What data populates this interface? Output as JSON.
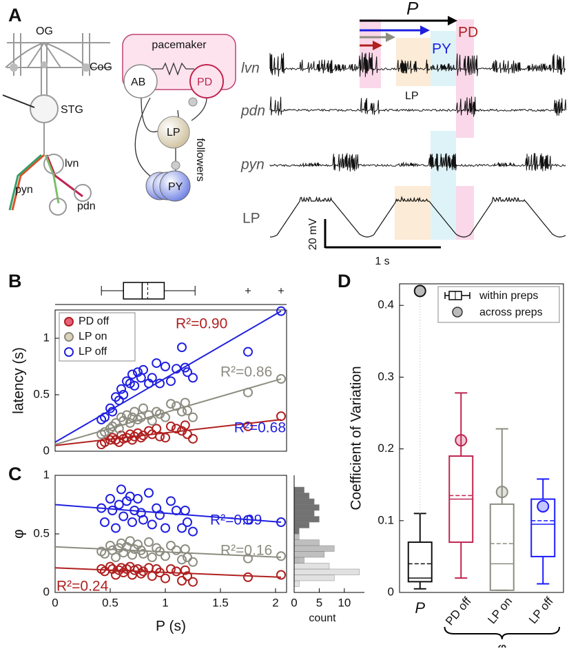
{
  "panel_labels": [
    "A",
    "B",
    "C",
    "D"
  ],
  "diagram": {
    "og": "OG",
    "cog": "CoG",
    "stg": "STG",
    "lvn": "lvn",
    "pyn": "pyn",
    "pdn": "pdn",
    "pacemaker": "pacemaker",
    "ab": "AB",
    "pd": "PD",
    "lp": "LP",
    "py": "PY",
    "followers": "followers"
  },
  "recordings": {
    "traces": [
      "lvn",
      "pdn",
      "pyn",
      "LP"
    ],
    "period_label": "P",
    "pd_label": "PD",
    "py_label": "PY",
    "lp_label": "LP",
    "scale_v": "20 mV",
    "scale_t": "1 s"
  },
  "chart_data": [
    {
      "type": "scatter",
      "ylabel": "latency (s)",
      "xlim": [
        0,
        2.1
      ],
      "ylim": [
        0,
        1.25
      ],
      "yticks": [
        0,
        0.5,
        1
      ],
      "legend": "upper left",
      "x": [
        0.42,
        0.45,
        0.5,
        0.52,
        0.55,
        0.58,
        0.6,
        0.62,
        0.65,
        0.68,
        0.7,
        0.72,
        0.75,
        0.78,
        0.8,
        0.85,
        0.88,
        0.92,
        0.95,
        1.0,
        1.05,
        1.1,
        1.15,
        1.18,
        1.2,
        1.25,
        1.75,
        2.05
      ],
      "fit_x": [
        0,
        2.05
      ],
      "series": [
        {
          "name": "PD off",
          "color": "#b02020",
          "fill": "#e8607a",
          "values": [
            0.06,
            0.08,
            0.1,
            0.12,
            0.1,
            0.08,
            0.14,
            0.11,
            0.12,
            0.15,
            0.1,
            0.13,
            0.16,
            0.12,
            0.14,
            0.18,
            0.15,
            0.2,
            0.13,
            0.12,
            0.22,
            0.2,
            0.18,
            0.23,
            0.15,
            0.11,
            0.22,
            0.31
          ],
          "fit": [
            0.05,
            0.28
          ],
          "r2_label": "R²=0.90"
        },
        {
          "name": "LP on",
          "color": "#8c8c80",
          "fill": "#ddd3b8",
          "values": [
            0.15,
            0.17,
            0.2,
            0.22,
            0.25,
            0.2,
            0.3,
            0.27,
            0.32,
            0.25,
            0.3,
            0.35,
            0.28,
            0.3,
            0.38,
            0.32,
            0.27,
            0.35,
            0.33,
            0.3,
            0.42,
            0.4,
            0.35,
            0.43,
            0.36,
            0.3,
            0.52,
            0.64
          ],
          "fit": [
            0.06,
            0.64
          ],
          "r2_label": "R²=0.86"
        },
        {
          "name": "LP off",
          "color": "#1f1fe0",
          "fill": "#ffffff",
          "values": [
            0.28,
            0.3,
            0.38,
            0.35,
            0.48,
            0.45,
            0.55,
            0.5,
            0.62,
            0.6,
            0.68,
            0.58,
            0.7,
            0.65,
            0.72,
            0.6,
            0.65,
            0.78,
            0.6,
            0.75,
            0.62,
            0.73,
            0.92,
            0.74,
            0.7,
            0.65,
            0.88,
            1.24
          ],
          "fit": [
            0.08,
            1.24
          ],
          "r2_label": "R²=0.68"
        }
      ],
      "boxplot": {
        "low": 0.42,
        "q1": 0.62,
        "median": 0.79,
        "mean": 0.84,
        "q3": 0.99,
        "high": 1.27,
        "outliers": [
          1.75,
          2.05
        ]
      }
    },
    {
      "type": "scatter",
      "ylabel": "φ",
      "xlabel": "P (s)",
      "xlim": [
        0,
        2.1
      ],
      "ylim": [
        0,
        1
      ],
      "yticks": [
        0,
        0.5,
        1
      ],
      "xticks": [
        0,
        0.5,
        1,
        1.5,
        2
      ],
      "x": [
        0.42,
        0.45,
        0.5,
        0.52,
        0.55,
        0.58,
        0.6,
        0.62,
        0.65,
        0.68,
        0.7,
        0.72,
        0.75,
        0.78,
        0.8,
        0.85,
        0.88,
        0.92,
        0.95,
        1.0,
        1.05,
        1.1,
        1.15,
        1.18,
        1.2,
        1.25,
        1.75,
        2.05
      ],
      "fit_x": [
        0,
        2.05
      ],
      "series": [
        {
          "name": "PD off",
          "color": "#b02020",
          "values": [
            0.2,
            0.18,
            0.22,
            0.2,
            0.15,
            0.19,
            0.21,
            0.17,
            0.2,
            0.22,
            0.15,
            0.19,
            0.2,
            0.16,
            0.18,
            0.21,
            0.14,
            0.2,
            0.17,
            0.12,
            0.2,
            0.18,
            0.1,
            0.19,
            0.14,
            0.09,
            0.13,
            0.15
          ],
          "fit": [
            0.21,
            0.13
          ],
          "r2_label": "R²=0.24"
        },
        {
          "name": "LP on",
          "color": "#8c8c80",
          "values": [
            0.35,
            0.33,
            0.4,
            0.36,
            0.3,
            0.38,
            0.42,
            0.34,
            0.39,
            0.44,
            0.32,
            0.37,
            0.41,
            0.36,
            0.33,
            0.43,
            0.3,
            0.38,
            0.35,
            0.31,
            0.4,
            0.36,
            0.28,
            0.37,
            0.3,
            0.26,
            0.29,
            0.31
          ],
          "fit": [
            0.39,
            0.3
          ],
          "r2_label": "R²=0.16"
        },
        {
          "name": "LP off",
          "color": "#1f1fe0",
          "values": [
            0.72,
            0.6,
            0.8,
            0.7,
            0.55,
            0.75,
            0.88,
            0.65,
            0.78,
            0.82,
            0.6,
            0.7,
            0.8,
            0.68,
            0.62,
            0.85,
            0.58,
            0.72,
            0.66,
            0.55,
            0.78,
            0.7,
            0.55,
            0.7,
            0.6,
            0.52,
            0.62,
            0.6
          ],
          "fit": [
            0.75,
            0.6
          ],
          "r2_label": "R²=0.09"
        }
      ]
    },
    {
      "type": "histogram",
      "orientation": "horizontal",
      "xlabel": "count",
      "xlim": [
        0,
        14
      ],
      "xticks": [
        0,
        5,
        10
      ],
      "ylim": [
        0,
        1
      ],
      "bins": [
        0,
        0.05,
        0.1,
        0.15,
        0.2,
        0.25,
        0.3,
        0.35,
        0.4,
        0.45,
        0.5,
        0.55,
        0.6,
        0.65,
        0.7,
        0.75,
        0.8,
        0.85,
        0.9,
        0.95,
        1
      ],
      "series": [
        {
          "color": "#dcdcdc",
          "values": [
            0,
            1,
            8,
            13,
            7,
            1,
            0,
            0,
            0,
            0,
            0,
            0,
            0,
            0,
            0,
            0,
            0,
            0,
            0,
            0
          ]
        },
        {
          "color": "#b4b4b4",
          "values": [
            0,
            0,
            0,
            0,
            0,
            2,
            6,
            8,
            5,
            1,
            0,
            0,
            0,
            0,
            0,
            0,
            0,
            0,
            0,
            0
          ]
        },
        {
          "color": "#5a5a5a",
          "values": [
            0,
            0,
            0,
            0,
            0,
            0,
            0,
            0,
            0,
            0,
            1,
            3,
            5,
            4,
            5,
            4,
            3,
            2,
            0,
            0
          ]
        }
      ]
    },
    {
      "type": "box",
      "ylabel": "Coefficient of Variation",
      "ylim": [
        0,
        0.43
      ],
      "yticks": [
        0,
        0.1,
        0.2,
        0.3,
        0.4
      ],
      "legend": "upper right",
      "legend_labels": [
        "within preps",
        "across preps"
      ],
      "group_label": "φ",
      "categories": [
        "P",
        "PD off",
        "LP on",
        "LP off"
      ],
      "boxes": [
        {
          "color": "#111111",
          "low": 0.005,
          "q1": 0.015,
          "median": 0.02,
          "mean": 0.04,
          "q3": 0.07,
          "high": 0.11,
          "across": 0.42
        },
        {
          "color": "#c0234f",
          "low": 0.02,
          "q1": 0.07,
          "median": 0.13,
          "mean": 0.135,
          "q3": 0.19,
          "high": 0.278,
          "across": 0.212
        },
        {
          "color": "#8c8c80",
          "low": 0.003,
          "q1": 0.003,
          "median": 0.04,
          "mean": 0.068,
          "q3": 0.123,
          "high": 0.228,
          "across": 0.14
        },
        {
          "color": "#1a1aff",
          "low": 0.012,
          "q1": 0.05,
          "median": 0.095,
          "mean": 0.1,
          "q3": 0.13,
          "high": 0.158,
          "across": 0.12
        }
      ]
    }
  ]
}
